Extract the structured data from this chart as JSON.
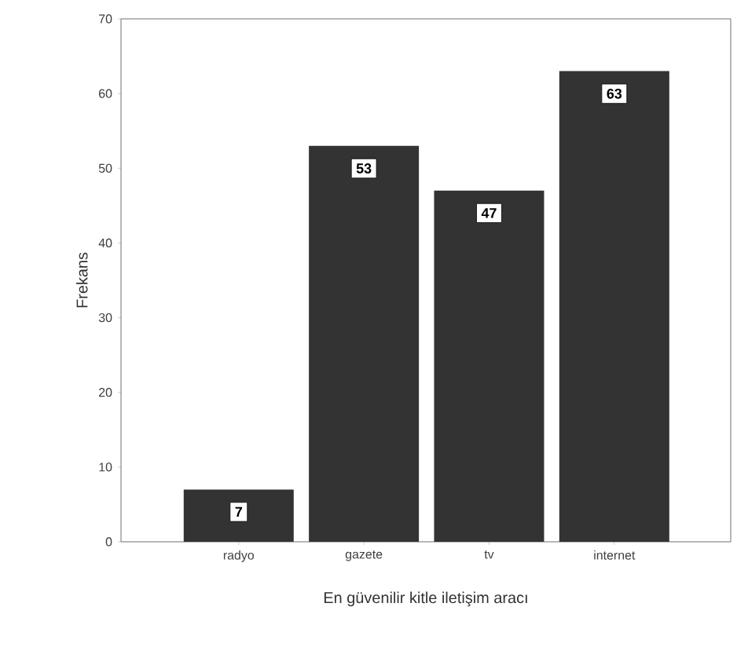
{
  "chart_data": {
    "type": "bar",
    "xlabel": "En güvenilir kitle iletişim aracı",
    "ylabel": "Frekans",
    "categories": [
      "radyo",
      "gazete",
      "tv",
      "internet"
    ],
    "values": [
      7,
      53,
      47,
      63
    ],
    "color": "#333333",
    "ylim": [
      0,
      70
    ],
    "yticks": [
      0,
      10,
      20,
      30,
      40,
      50,
      60,
      70
    ],
    "data_labels": true
  }
}
